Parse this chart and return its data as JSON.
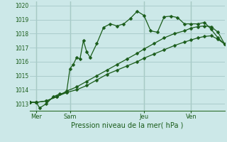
{
  "bg_color": "#cce8e8",
  "grid_color": "#aacccc",
  "line_color": "#1a5c1a",
  "marker_color": "#1a5c1a",
  "title": "Pression niveau de la mer( hPa )",
  "ylim": [
    1012.5,
    1020.3
  ],
  "yticks": [
    1013,
    1014,
    1015,
    1016,
    1017,
    1018,
    1019,
    1020
  ],
  "day_labels": [
    "Mer",
    "Sam",
    "Jeu",
    "Ven"
  ],
  "day_positions": [
    2,
    12,
    34,
    48
  ],
  "vline_positions": [
    2,
    12,
    34,
    48
  ],
  "xlim": [
    0,
    58
  ],
  "series1": [
    [
      0,
      1013.1
    ],
    [
      2,
      1013.1
    ],
    [
      3,
      1012.7
    ],
    [
      5,
      1013.0
    ],
    [
      7,
      1013.5
    ],
    [
      9,
      1013.7
    ],
    [
      11,
      1013.8
    ],
    [
      12,
      1015.5
    ],
    [
      13,
      1015.8
    ],
    [
      14,
      1016.3
    ],
    [
      15,
      1016.2
    ],
    [
      16,
      1017.5
    ],
    [
      17,
      1016.7
    ],
    [
      18,
      1016.3
    ],
    [
      20,
      1017.3
    ],
    [
      22,
      1018.45
    ],
    [
      24,
      1018.7
    ],
    [
      26,
      1018.55
    ],
    [
      28,
      1018.7
    ],
    [
      30,
      1019.1
    ],
    [
      32,
      1019.6
    ],
    [
      34,
      1019.3
    ],
    [
      36,
      1018.2
    ],
    [
      38,
      1018.1
    ],
    [
      40,
      1019.2
    ],
    [
      42,
      1019.25
    ],
    [
      44,
      1019.15
    ],
    [
      46,
      1018.7
    ],
    [
      48,
      1018.7
    ],
    [
      50,
      1018.7
    ],
    [
      52,
      1018.8
    ],
    [
      54,
      1018.3
    ],
    [
      56,
      1017.7
    ],
    [
      58,
      1017.25
    ]
  ],
  "series2": [
    [
      0,
      1013.1
    ],
    [
      2,
      1013.1
    ],
    [
      5,
      1013.2
    ],
    [
      8,
      1013.5
    ],
    [
      11,
      1013.9
    ],
    [
      14,
      1014.2
    ],
    [
      17,
      1014.6
    ],
    [
      20,
      1015.0
    ],
    [
      23,
      1015.4
    ],
    [
      26,
      1015.8
    ],
    [
      29,
      1016.2
    ],
    [
      32,
      1016.6
    ],
    [
      34,
      1016.9
    ],
    [
      37,
      1017.3
    ],
    [
      40,
      1017.7
    ],
    [
      43,
      1018.0
    ],
    [
      46,
      1018.2
    ],
    [
      48,
      1018.4
    ],
    [
      50,
      1018.5
    ],
    [
      52,
      1018.55
    ],
    [
      54,
      1018.5
    ],
    [
      56,
      1018.1
    ],
    [
      58,
      1017.25
    ]
  ],
  "series3": [
    [
      0,
      1013.1
    ],
    [
      2,
      1013.1
    ],
    [
      5,
      1013.2
    ],
    [
      8,
      1013.5
    ],
    [
      11,
      1013.8
    ],
    [
      14,
      1014.0
    ],
    [
      17,
      1014.3
    ],
    [
      20,
      1014.7
    ],
    [
      23,
      1015.1
    ],
    [
      26,
      1015.4
    ],
    [
      29,
      1015.7
    ],
    [
      32,
      1016.0
    ],
    [
      34,
      1016.25
    ],
    [
      37,
      1016.55
    ],
    [
      40,
      1016.85
    ],
    [
      43,
      1017.15
    ],
    [
      46,
      1017.4
    ],
    [
      48,
      1017.55
    ],
    [
      50,
      1017.7
    ],
    [
      52,
      1017.8
    ],
    [
      54,
      1017.85
    ],
    [
      56,
      1017.6
    ],
    [
      58,
      1017.25
    ]
  ]
}
